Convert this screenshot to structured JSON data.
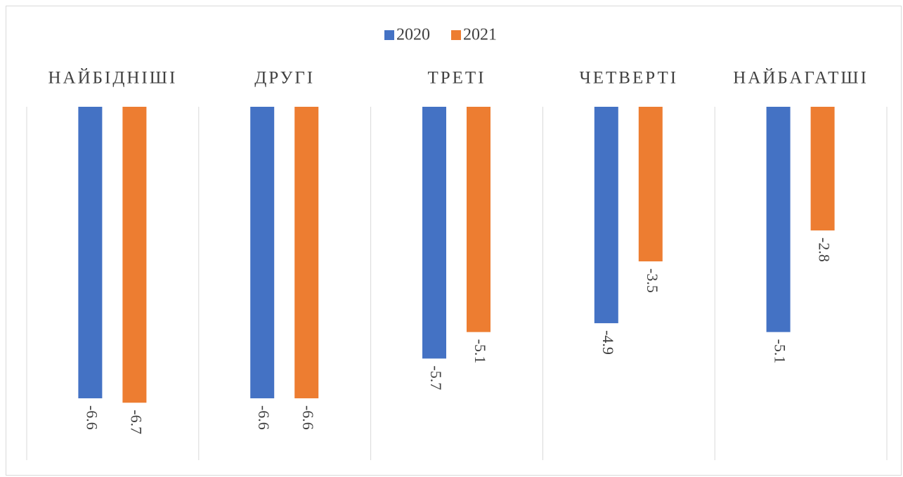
{
  "chart_data": {
    "type": "bar",
    "categories": [
      "НАЙБІДНІШІ",
      "ДРУГІ",
      "ТРЕТІ",
      "ЧЕТВЕРТІ",
      "НАЙБАГАТШІ"
    ],
    "series": [
      {
        "name": "2020",
        "color": "#4472c4",
        "values": [
          -6.6,
          -6.6,
          -5.7,
          -4.9,
          -5.1
        ]
      },
      {
        "name": "2021",
        "color": "#ed7d31",
        "values": [
          -6.7,
          -6.6,
          -5.1,
          -3.5,
          -2.8
        ]
      }
    ],
    "ylim": [
      -8,
      0
    ],
    "legend": "top"
  }
}
